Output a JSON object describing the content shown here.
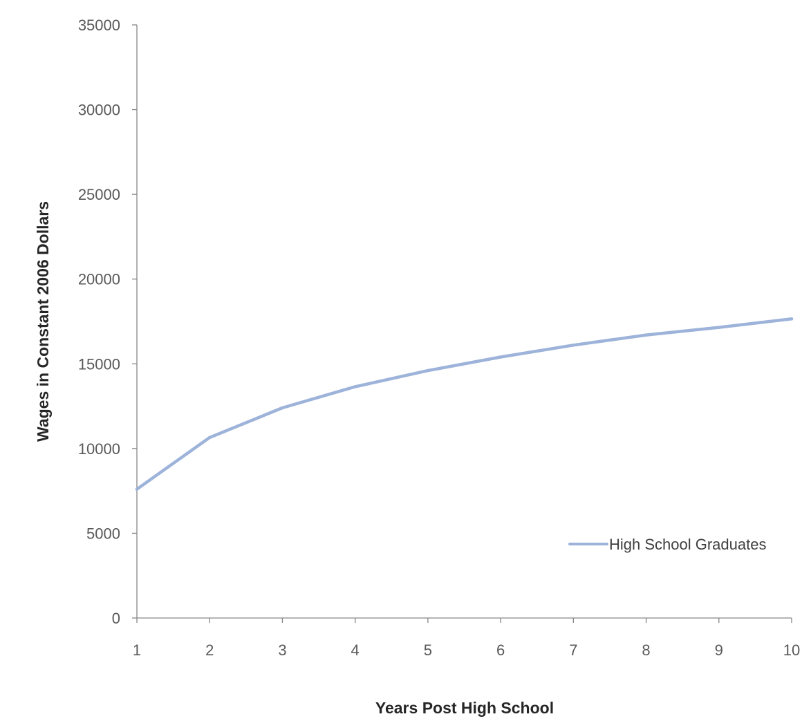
{
  "chart_data": {
    "type": "line",
    "title": "",
    "xlabel": "Years Post High School",
    "ylabel": "Wages in Constant 2006  Dollars",
    "x": [
      1,
      2,
      3,
      4,
      5,
      6,
      7,
      8,
      9,
      10
    ],
    "x_tick_labels": [
      "1",
      "2",
      "3",
      "4",
      "5",
      "6",
      "7",
      "8",
      "9",
      "10"
    ],
    "y_ticks": [
      0,
      5000,
      10000,
      15000,
      20000,
      25000,
      30000,
      35000
    ],
    "y_tick_labels": [
      "0",
      "5000",
      "10000",
      "15000",
      "20000",
      "25000",
      "30000",
      "35000"
    ],
    "xlim": [
      1,
      10
    ],
    "ylim": [
      0,
      35000
    ],
    "grid": false,
    "legend_position": "bottom-right",
    "series": [
      {
        "name": "High School Graduates",
        "color": "#9DB3DA",
        "values": [
          7600,
          10650,
          12400,
          13650,
          14600,
          15400,
          16100,
          16700,
          17150,
          17650
        ]
      }
    ]
  }
}
